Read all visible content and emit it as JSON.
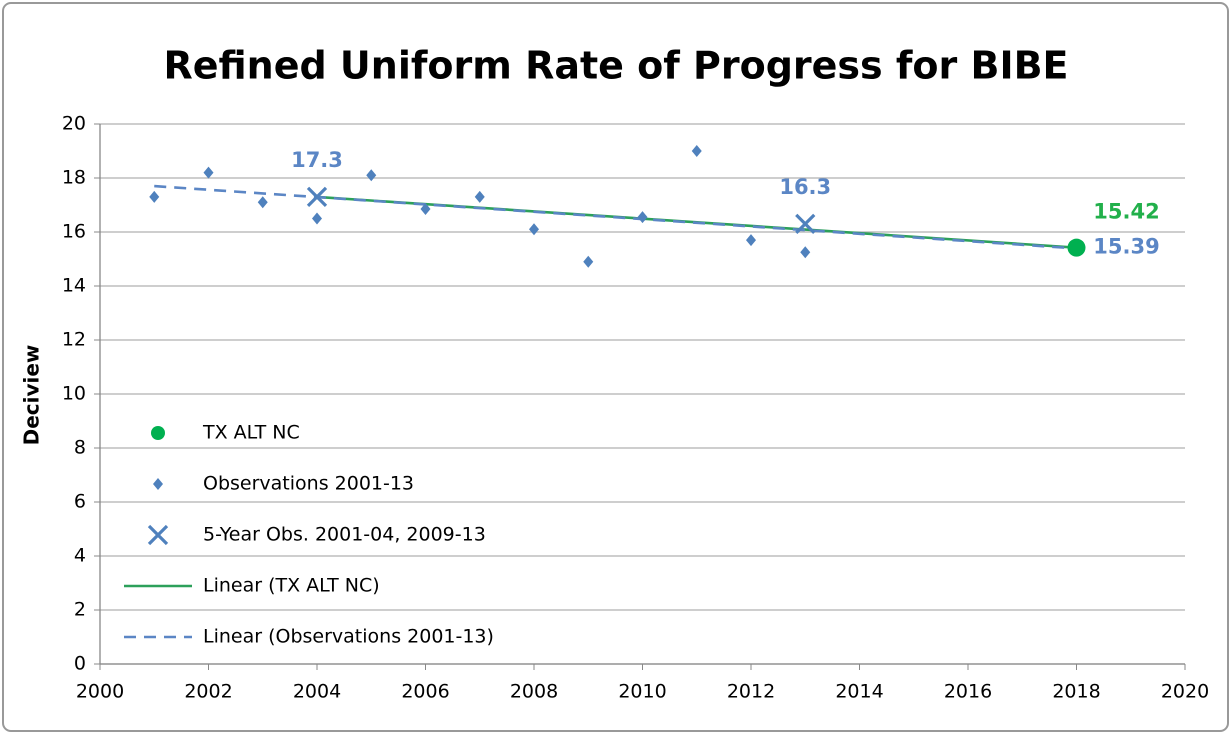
{
  "chart_data": {
    "type": "scatter",
    "title": "Refined Uniform Rate of Progress for BIBE",
    "y_label": "Deciview",
    "xlim": [
      2000,
      2020
    ],
    "xticks": [
      2000,
      2002,
      2004,
      2006,
      2008,
      2010,
      2012,
      2014,
      2016,
      2018,
      2020
    ],
    "ylim": [
      0,
      20
    ],
    "yticks": [
      0,
      2,
      4,
      6,
      8,
      10,
      12,
      14,
      16,
      18,
      20
    ],
    "grid": true,
    "legend": "left",
    "series": [
      {
        "name": "TX ALT NC",
        "color": "#00b050",
        "label_color": "#22b04b",
        "marker": "circle",
        "data_labels": "all",
        "label_position": "above-right",
        "x": [
          2018
        ],
        "values": [
          15.42
        ]
      },
      {
        "name": "Observations 2001-13",
        "color": "#4f81bd",
        "marker": "diamond",
        "x": [
          2001,
          2002,
          2003,
          2004,
          2005,
          2006,
          2007,
          2008,
          2009,
          2010,
          2011,
          2012,
          2013
        ],
        "values": [
          17.3,
          18.2,
          17.1,
          16.5,
          18.1,
          16.85,
          17.3,
          16.1,
          14.9,
          16.55,
          19.0,
          15.7,
          15.25
        ]
      },
      {
        "name": "5-Year Obs. 2001-04, 2009-13",
        "color": "#4f81bd",
        "label_color": "#5b86c5",
        "marker": "x",
        "data_labels": "all",
        "label_position": "above",
        "x": [
          2004,
          2013
        ],
        "values": [
          17.3,
          16.3
        ]
      },
      {
        "name": "Linear (TX ALT NC)",
        "color": "#2ca05a",
        "line": "solid",
        "x": [
          2004,
          2018
        ],
        "values": [
          17.3,
          15.42
        ]
      },
      {
        "name": "Linear (Observations 2001-13)",
        "color": "#5b86c5",
        "label_color": "#5b86c5",
        "line": "dashed",
        "data_labels": "last",
        "label_position": "right",
        "x": [
          2001,
          2018
        ],
        "values": [
          17.7,
          15.39
        ]
      }
    ]
  }
}
